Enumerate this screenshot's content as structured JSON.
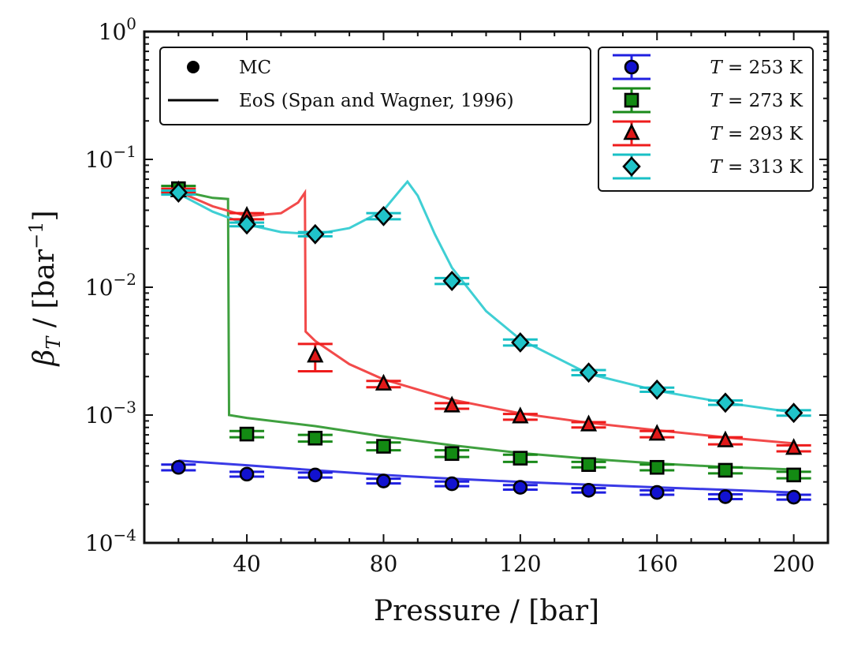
{
  "chart_data": {
    "type": "scatter",
    "title": "",
    "xlabel": "Pressure / [bar]",
    "ylabel_symbol": "β",
    "ylabel_sub": "T",
    "ylabel_rest": " / [bar",
    "ylabel_exp": "−1",
    "ylabel_close": "]",
    "xlim": [
      10,
      210
    ],
    "ylim": [
      0.0001,
      1
    ],
    "yscale": "log",
    "xticks": [
      40,
      80,
      120,
      160,
      200
    ],
    "xtick_labels": [
      "40",
      "80",
      "120",
      "160",
      "200"
    ],
    "yticks": [
      -4,
      -3,
      -2,
      -1,
      0
    ],
    "ytick_base": "10",
    "ytick_exps": [
      "−4",
      "−3",
      "−2",
      "−1",
      "0"
    ],
    "legend_methods": {
      "placement": "upper-left",
      "items": [
        {
          "label": "MC",
          "kind": "marker"
        },
        {
          "label": "EoS (Span and Wagner, 1996)",
          "kind": "line"
        }
      ]
    },
    "series": [
      {
        "name": "T = 253 K",
        "label_var": "T",
        "label_rest": " = 253 K",
        "color": "#1f1fe0",
        "line_color": "#3a3ae6",
        "marker": "circle",
        "marker_color": "#1212d0",
        "x": [
          20,
          40,
          60,
          80,
          100,
          120,
          140,
          160,
          180,
          200
        ],
        "y": [
          0.00039,
          0.000345,
          0.00034,
          0.000305,
          0.00029,
          0.000272,
          0.000258,
          0.000248,
          0.00023,
          0.000228
        ],
        "err": [
          2e-05,
          1.5e-05,
          1.5e-05,
          1.3e-05,
          1.2e-05,
          1.1e-05,
          1e-05,
          1e-05,
          1e-05,
          1e-05
        ],
        "eos": {
          "x": [
            20,
            40,
            60,
            80,
            100,
            120,
            140,
            160,
            180,
            200
          ],
          "y": [
            0.00044,
            0.000405,
            0.00037,
            0.00034,
            0.000318,
            0.0003,
            0.000285,
            0.000272,
            0.00026,
            0.000248
          ]
        }
      },
      {
        "name": "T = 273 K",
        "label_var": "T",
        "label_rest": " = 273 K",
        "color": "#1a8a1a",
        "line_color": "#3fa03f",
        "marker": "square",
        "marker_color": "#138a13",
        "x": [
          20,
          40,
          60,
          80,
          100,
          120,
          140,
          160,
          180,
          200
        ],
        "y": [
          0.059,
          0.00071,
          0.00066,
          0.00057,
          0.0005,
          0.00046,
          0.00041,
          0.00039,
          0.00037,
          0.00034
        ],
        "err": [
          0.003,
          4e-05,
          4e-05,
          4e-05,
          3e-05,
          3e-05,
          2e-05,
          2e-05,
          2e-05,
          2e-05
        ],
        "eos": {
          "x": [
            20,
            30,
            34.5,
            34.8,
            40,
            60,
            80,
            100,
            120,
            140,
            160,
            180,
            200
          ],
          "y": [
            0.057,
            0.05,
            0.049,
            0.001,
            0.00095,
            0.00082,
            0.00068,
            0.00058,
            0.000505,
            0.000455,
            0.000418,
            0.000392,
            0.000375
          ]
        }
      },
      {
        "name": "T = 293 K",
        "label_var": "T",
        "label_rest": " = 293 K",
        "color": "#ee1c1c",
        "line_color": "#f24a4a",
        "marker": "triangle",
        "marker_color": "#e01818",
        "x": [
          20,
          40,
          60,
          80,
          100,
          120,
          140,
          160,
          180,
          200
        ],
        "y": [
          0.057,
          0.036,
          0.0029,
          0.00175,
          0.00118,
          0.00097,
          0.00084,
          0.00071,
          0.00063,
          0.00055
        ],
        "err": [
          0.002,
          0.002,
          0.0007,
          0.0001,
          6e-05,
          5e-05,
          4e-05,
          4e-05,
          4e-05,
          3e-05
        ],
        "eos": {
          "x": [
            20,
            30,
            40,
            50,
            55,
            57,
            57.2,
            60,
            70,
            80,
            100,
            120,
            140,
            160,
            180,
            200
          ],
          "y": [
            0.056,
            0.043,
            0.036,
            0.038,
            0.046,
            0.055,
            0.0045,
            0.0038,
            0.0025,
            0.0019,
            0.00132,
            0.00103,
            0.00087,
            0.00076,
            0.00067,
            0.0006
          ]
        }
      },
      {
        "name": "T = 313 K",
        "label_var": "T",
        "label_rest": " = 313 K",
        "color": "#19c0c6",
        "line_color": "#3fcfd4",
        "marker": "diamond",
        "marker_color": "#20c4c9",
        "x": [
          20,
          40,
          60,
          80,
          100,
          120,
          140,
          160,
          180,
          200
        ],
        "y": [
          0.055,
          0.031,
          0.026,
          0.036,
          0.0112,
          0.0037,
          0.00215,
          0.00158,
          0.00125,
          0.00104
        ],
        "err": [
          0.002,
          0.001,
          0.001,
          0.002,
          0.0006,
          0.0002,
          0.0001,
          6e-05,
          5e-05,
          5e-05
        ],
        "eos": {
          "x": [
            20,
            30,
            40,
            50,
            60,
            70,
            80,
            85,
            87,
            90,
            95,
            100,
            110,
            120,
            140,
            160,
            180,
            200
          ],
          "y": [
            0.054,
            0.039,
            0.031,
            0.027,
            0.026,
            0.029,
            0.04,
            0.058,
            0.067,
            0.052,
            0.026,
            0.0142,
            0.0065,
            0.0039,
            0.0021,
            0.00155,
            0.00125,
            0.00105
          ]
        }
      }
    ]
  }
}
